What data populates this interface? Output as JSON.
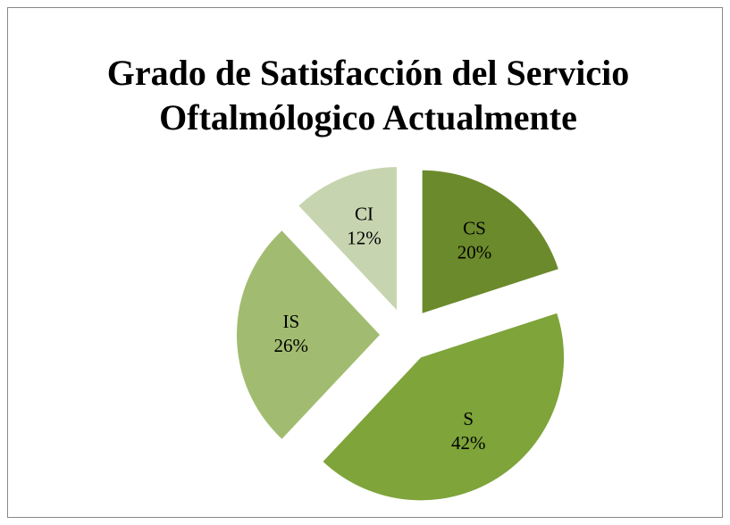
{
  "chart_data": {
    "type": "pie",
    "title": [
      "Grado de Satisfacción del Servicio",
      "Oftalmólogico Actualmente"
    ],
    "categories": [
      "CS",
      "S",
      "IS",
      "CI"
    ],
    "values": [
      20,
      42,
      26,
      12
    ],
    "value_labels": [
      "20%",
      "42%",
      "26%",
      "12%"
    ],
    "colors": [
      "#6b8a2b",
      "#7ea43a",
      "#a1bc70",
      "#c6d5b0"
    ],
    "exploded": true
  }
}
